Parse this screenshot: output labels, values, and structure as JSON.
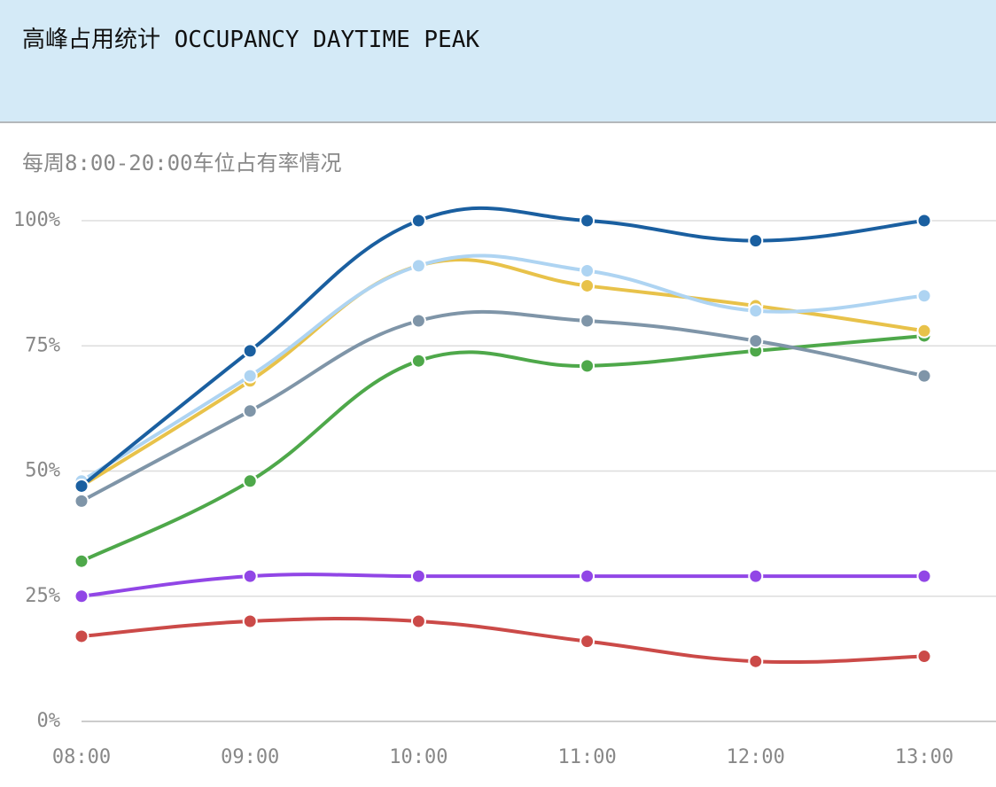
{
  "header": {
    "title": "高峰占用统计 OCCUPANCY DAYTIME PEAK"
  },
  "subtitle": "每周8:00-20:00车位占有率情况",
  "chart_data": {
    "type": "line",
    "categories": [
      "08:00",
      "09:00",
      "10:00",
      "11:00",
      "12:00",
      "13:00"
    ],
    "ylim": [
      0,
      100
    ],
    "yticks": [
      {
        "value": 0,
        "label": "0%"
      },
      {
        "value": 25,
        "label": "25%"
      },
      {
        "value": 50,
        "label": "50%"
      },
      {
        "value": 75,
        "label": "75%"
      },
      {
        "value": 100,
        "label": "100%"
      }
    ],
    "grid": true,
    "series": [
      {
        "color": "#cb4a48",
        "values": [
          17,
          20,
          20,
          16,
          12,
          13
        ]
      },
      {
        "color": "#9146e6",
        "values": [
          25,
          29,
          29,
          29,
          29,
          29
        ]
      },
      {
        "color": "#4ea84a",
        "values": [
          32,
          48,
          72,
          71,
          74,
          77
        ]
      },
      {
        "color": "#7f95a8",
        "values": [
          44,
          62,
          80,
          80,
          76,
          69
        ]
      },
      {
        "color": "#e8c24a",
        "values": [
          47,
          68,
          91,
          87,
          83,
          78
        ]
      },
      {
        "color": "#aed4f2",
        "values": [
          48,
          69,
          91,
          90,
          82,
          85
        ]
      },
      {
        "color": "#1a5fa0",
        "values": [
          47,
          74,
          100,
          100,
          96,
          100
        ]
      }
    ]
  }
}
